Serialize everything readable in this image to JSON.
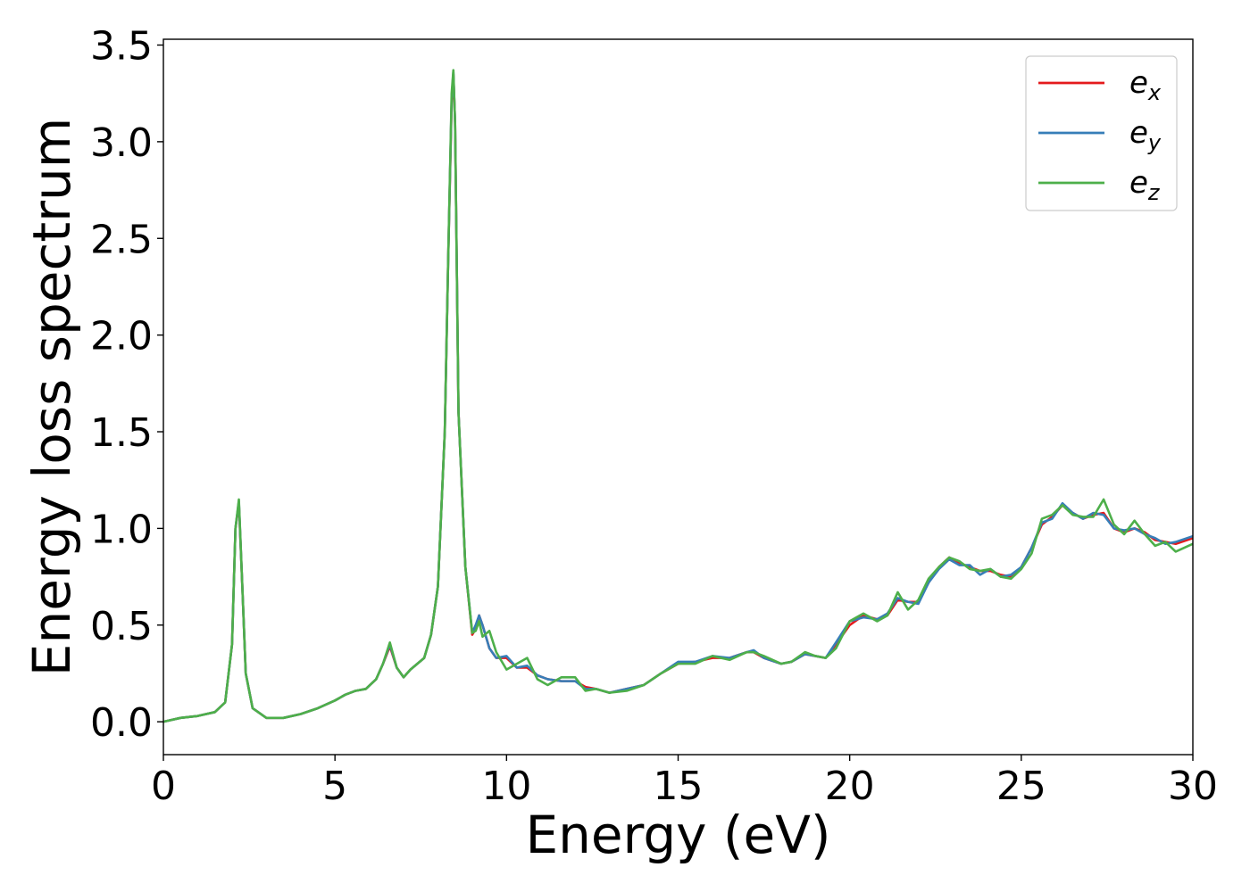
{
  "chart_data": {
    "type": "line",
    "xlabel": "Energy (eV)",
    "ylabel": "Energy loss spectrum",
    "xlim": [
      0,
      30
    ],
    "ylim": [
      -0.17,
      3.53
    ],
    "xticks": [
      0,
      5,
      10,
      15,
      20,
      25,
      30
    ],
    "xtick_labels": [
      "0",
      "5",
      "10",
      "15",
      "20",
      "25",
      "30"
    ],
    "yticks": [
      0.0,
      0.5,
      1.0,
      1.5,
      2.0,
      2.5,
      3.0,
      3.5
    ],
    "ytick_labels": [
      "0.0",
      "0.5",
      "1.0",
      "1.5",
      "2.0",
      "2.5",
      "3.0",
      "3.5"
    ],
    "grid": false,
    "legend_position": "top-right",
    "series": [
      {
        "name": "e_x",
        "legend_base": "e",
        "legend_sub": "x",
        "color": "#e41a1c",
        "x": [
          0,
          0.5,
          1.0,
          1.5,
          1.8,
          2.0,
          2.1,
          2.2,
          2.3,
          2.4,
          2.6,
          3.0,
          3.5,
          4.0,
          4.5,
          5.0,
          5.3,
          5.6,
          5.9,
          6.2,
          6.4,
          6.6,
          6.8,
          7.0,
          7.2,
          7.4,
          7.6,
          7.8,
          8.0,
          8.2,
          8.3,
          8.4,
          8.45,
          8.5,
          8.6,
          8.8,
          9.0,
          9.1,
          9.2,
          9.3,
          9.5,
          9.7,
          10.0,
          10.3,
          10.6,
          10.9,
          11.2,
          11.6,
          12.0,
          12.3,
          12.6,
          13.0,
          13.5,
          14.0,
          14.5,
          15.0,
          15.5,
          16.0,
          16.5,
          17.0,
          17.2,
          17.5,
          18.0,
          18.3,
          18.7,
          19.0,
          19.3,
          19.6,
          20.0,
          20.4,
          20.8,
          21.1,
          21.4,
          21.7,
          22.0,
          22.3,
          22.6,
          22.9,
          23.2,
          23.5,
          23.8,
          24.1,
          24.4,
          24.7,
          25.0,
          25.3,
          25.6,
          25.9,
          26.2,
          26.5,
          26.8,
          27.1,
          27.4,
          27.7,
          28.0,
          28.3,
          28.6,
          28.9,
          29.2,
          29.5,
          30.0
        ],
        "y": [
          0.0,
          0.02,
          0.03,
          0.05,
          0.1,
          0.4,
          1.0,
          1.13,
          0.7,
          0.25,
          0.07,
          0.02,
          0.02,
          0.04,
          0.07,
          0.11,
          0.14,
          0.16,
          0.17,
          0.22,
          0.3,
          0.39,
          0.28,
          0.23,
          0.27,
          0.3,
          0.33,
          0.45,
          0.7,
          1.5,
          2.4,
          3.2,
          3.35,
          3.1,
          1.6,
          0.8,
          0.45,
          0.48,
          0.55,
          0.5,
          0.38,
          0.33,
          0.33,
          0.28,
          0.28,
          0.24,
          0.22,
          0.21,
          0.21,
          0.18,
          0.17,
          0.15,
          0.17,
          0.19,
          0.25,
          0.3,
          0.31,
          0.33,
          0.33,
          0.36,
          0.36,
          0.33,
          0.3,
          0.31,
          0.35,
          0.34,
          0.33,
          0.4,
          0.5,
          0.55,
          0.53,
          0.55,
          0.63,
          0.62,
          0.62,
          0.72,
          0.8,
          0.85,
          0.82,
          0.8,
          0.78,
          0.78,
          0.76,
          0.75,
          0.8,
          0.9,
          1.02,
          1.06,
          1.12,
          1.08,
          1.05,
          1.07,
          1.08,
          1.0,
          0.98,
          1.0,
          0.98,
          0.94,
          0.93,
          0.92,
          0.95
        ]
      },
      {
        "name": "e_y",
        "legend_base": "e",
        "legend_sub": "y",
        "color": "#377eb8",
        "x": [
          0,
          0.5,
          1.0,
          1.5,
          1.8,
          2.0,
          2.1,
          2.2,
          2.3,
          2.4,
          2.6,
          3.0,
          3.5,
          4.0,
          4.5,
          5.0,
          5.3,
          5.6,
          5.9,
          6.2,
          6.4,
          6.6,
          6.8,
          7.0,
          7.2,
          7.4,
          7.6,
          7.8,
          8.0,
          8.2,
          8.3,
          8.4,
          8.45,
          8.5,
          8.6,
          8.8,
          9.0,
          9.1,
          9.2,
          9.3,
          9.5,
          9.7,
          10.0,
          10.3,
          10.6,
          10.9,
          11.2,
          11.6,
          12.0,
          12.3,
          12.6,
          13.0,
          13.5,
          14.0,
          14.5,
          15.0,
          15.5,
          16.0,
          16.5,
          17.0,
          17.2,
          17.5,
          18.0,
          18.3,
          18.7,
          19.0,
          19.3,
          19.6,
          20.0,
          20.4,
          20.8,
          21.1,
          21.4,
          21.7,
          22.0,
          22.3,
          22.6,
          22.9,
          23.2,
          23.5,
          23.8,
          24.1,
          24.4,
          24.7,
          25.0,
          25.3,
          25.6,
          25.9,
          26.2,
          26.5,
          26.8,
          27.1,
          27.4,
          27.7,
          28.0,
          28.3,
          28.6,
          28.9,
          29.2,
          29.5,
          30.0
        ],
        "y": [
          0.0,
          0.02,
          0.03,
          0.05,
          0.1,
          0.4,
          1.0,
          1.14,
          0.7,
          0.25,
          0.07,
          0.02,
          0.02,
          0.04,
          0.07,
          0.11,
          0.14,
          0.16,
          0.17,
          0.22,
          0.3,
          0.4,
          0.28,
          0.23,
          0.27,
          0.3,
          0.33,
          0.45,
          0.7,
          1.5,
          2.4,
          3.22,
          3.36,
          3.1,
          1.6,
          0.8,
          0.46,
          0.5,
          0.55,
          0.5,
          0.38,
          0.33,
          0.34,
          0.28,
          0.29,
          0.24,
          0.22,
          0.21,
          0.21,
          0.17,
          0.17,
          0.15,
          0.17,
          0.19,
          0.25,
          0.31,
          0.31,
          0.34,
          0.33,
          0.36,
          0.37,
          0.33,
          0.3,
          0.31,
          0.35,
          0.34,
          0.33,
          0.41,
          0.52,
          0.54,
          0.53,
          0.56,
          0.64,
          0.62,
          0.61,
          0.72,
          0.79,
          0.84,
          0.81,
          0.81,
          0.76,
          0.79,
          0.75,
          0.76,
          0.8,
          0.9,
          1.03,
          1.05,
          1.13,
          1.08,
          1.05,
          1.08,
          1.07,
          1.0,
          0.99,
          1.0,
          0.97,
          0.95,
          0.92,
          0.93,
          0.96
        ]
      },
      {
        "name": "e_z",
        "legend_base": "e",
        "legend_sub": "z",
        "color": "#4daf4a",
        "x": [
          0,
          0.5,
          1.0,
          1.5,
          1.8,
          2.0,
          2.1,
          2.2,
          2.3,
          2.4,
          2.6,
          3.0,
          3.5,
          4.0,
          4.5,
          5.0,
          5.3,
          5.6,
          5.9,
          6.2,
          6.4,
          6.6,
          6.8,
          7.0,
          7.2,
          7.4,
          7.6,
          7.8,
          8.0,
          8.2,
          8.3,
          8.4,
          8.45,
          8.5,
          8.6,
          8.8,
          9.0,
          9.1,
          9.2,
          9.3,
          9.5,
          9.7,
          10.0,
          10.3,
          10.6,
          10.9,
          11.2,
          11.6,
          12.0,
          12.3,
          12.6,
          13.0,
          13.5,
          14.0,
          14.5,
          15.0,
          15.5,
          16.0,
          16.5,
          17.0,
          17.2,
          17.5,
          18.0,
          18.3,
          18.7,
          19.0,
          19.3,
          19.6,
          20.0,
          20.4,
          20.8,
          21.1,
          21.4,
          21.7,
          22.0,
          22.3,
          22.6,
          22.9,
          23.2,
          23.5,
          23.8,
          24.1,
          24.4,
          24.7,
          25.0,
          25.3,
          25.6,
          25.9,
          26.2,
          26.5,
          26.8,
          27.1,
          27.4,
          27.7,
          28.0,
          28.3,
          28.6,
          28.9,
          29.2,
          29.5,
          30.0
        ],
        "y": [
          0.0,
          0.02,
          0.03,
          0.05,
          0.1,
          0.4,
          1.0,
          1.15,
          0.7,
          0.25,
          0.07,
          0.02,
          0.02,
          0.04,
          0.07,
          0.11,
          0.14,
          0.16,
          0.17,
          0.22,
          0.3,
          0.41,
          0.28,
          0.23,
          0.27,
          0.3,
          0.33,
          0.45,
          0.7,
          1.5,
          2.4,
          3.25,
          3.37,
          3.1,
          1.6,
          0.8,
          0.46,
          0.47,
          0.52,
          0.44,
          0.47,
          0.36,
          0.27,
          0.3,
          0.33,
          0.22,
          0.19,
          0.23,
          0.23,
          0.16,
          0.17,
          0.15,
          0.16,
          0.19,
          0.25,
          0.3,
          0.3,
          0.34,
          0.32,
          0.36,
          0.36,
          0.34,
          0.3,
          0.31,
          0.36,
          0.34,
          0.33,
          0.38,
          0.52,
          0.56,
          0.52,
          0.55,
          0.67,
          0.58,
          0.63,
          0.74,
          0.8,
          0.85,
          0.83,
          0.79,
          0.78,
          0.79,
          0.75,
          0.74,
          0.79,
          0.87,
          1.05,
          1.07,
          1.12,
          1.07,
          1.06,
          1.06,
          1.15,
          1.02,
          0.97,
          1.04,
          0.97,
          0.91,
          0.93,
          0.88,
          0.92
        ]
      }
    ]
  }
}
